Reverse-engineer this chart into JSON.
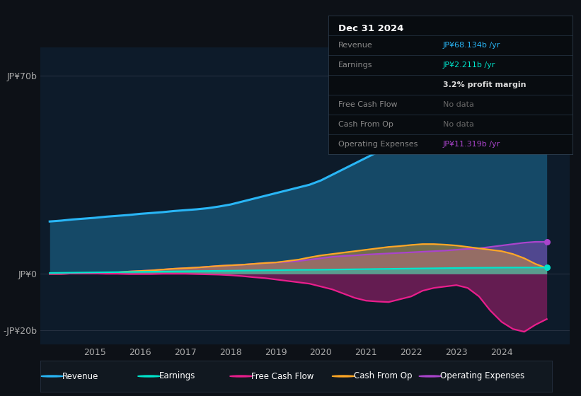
{
  "bg_color": "#0d1117",
  "chart_bg": "#0d1b2a",
  "ylim": [
    -25,
    80
  ],
  "ytick_positions": [
    -20,
    0,
    70
  ],
  "ytick_labels": [
    "-JP¥20b",
    "JP¥0",
    "JP¥70b"
  ],
  "xlim": [
    2013.8,
    2025.5
  ],
  "xtick_years": [
    2015,
    2016,
    2017,
    2018,
    2019,
    2020,
    2021,
    2022,
    2023,
    2024
  ],
  "years": [
    2014.0,
    2014.25,
    2014.5,
    2014.75,
    2015.0,
    2015.25,
    2015.5,
    2015.75,
    2016.0,
    2016.25,
    2016.5,
    2016.75,
    2017.0,
    2017.25,
    2017.5,
    2017.75,
    2018.0,
    2018.25,
    2018.5,
    2018.75,
    2019.0,
    2019.25,
    2019.5,
    2019.75,
    2020.0,
    2020.25,
    2020.5,
    2020.75,
    2021.0,
    2021.25,
    2021.5,
    2021.75,
    2022.0,
    2022.25,
    2022.5,
    2022.75,
    2023.0,
    2023.25,
    2023.5,
    2023.75,
    2024.0,
    2024.25,
    2024.5,
    2024.75,
    2025.0
  ],
  "revenue": [
    18.5,
    18.8,
    19.2,
    19.5,
    19.8,
    20.2,
    20.5,
    20.8,
    21.2,
    21.5,
    21.8,
    22.2,
    22.5,
    22.8,
    23.2,
    23.8,
    24.5,
    25.5,
    26.5,
    27.5,
    28.5,
    29.5,
    30.5,
    31.5,
    33.0,
    35.0,
    37.0,
    39.0,
    41.0,
    43.0,
    44.5,
    46.0,
    47.5,
    49.0,
    50.5,
    52.0,
    53.5,
    55.0,
    57.0,
    59.5,
    62.0,
    64.0,
    66.0,
    68.0,
    68.1
  ],
  "earnings": [
    0.3,
    0.35,
    0.4,
    0.45,
    0.5,
    0.55,
    0.6,
    0.65,
    0.7,
    0.75,
    0.8,
    0.85,
    0.9,
    0.95,
    1.0,
    1.05,
    1.1,
    1.15,
    1.2,
    1.25,
    1.3,
    1.35,
    1.4,
    1.42,
    1.45,
    1.5,
    1.55,
    1.6,
    1.65,
    1.7,
    1.75,
    1.8,
    1.85,
    1.9,
    1.95,
    2.0,
    2.05,
    2.1,
    2.12,
    2.15,
    2.18,
    2.2,
    2.21,
    2.21,
    2.21
  ],
  "free_cash_flow": [
    0.0,
    0.0,
    0.1,
    0.1,
    0.1,
    0.0,
    0.0,
    -0.1,
    -0.1,
    -0.1,
    0.0,
    0.0,
    0.0,
    -0.1,
    -0.2,
    -0.3,
    -0.5,
    -0.8,
    -1.2,
    -1.5,
    -2.0,
    -2.5,
    -3.0,
    -3.5,
    -4.5,
    -5.5,
    -7.0,
    -8.5,
    -9.5,
    -9.8,
    -10.0,
    -9.0,
    -8.0,
    -6.0,
    -5.0,
    -4.5,
    -4.0,
    -5.0,
    -8.0,
    -13.0,
    -17.0,
    -19.5,
    -20.5,
    -18.0,
    -16.0
  ],
  "cash_from_op": [
    0.0,
    0.0,
    0.1,
    0.1,
    0.2,
    0.3,
    0.5,
    0.8,
    1.0,
    1.2,
    1.5,
    1.8,
    2.0,
    2.2,
    2.5,
    2.8,
    3.0,
    3.2,
    3.5,
    3.8,
    4.0,
    4.5,
    5.0,
    5.8,
    6.5,
    7.0,
    7.5,
    8.0,
    8.5,
    9.0,
    9.5,
    9.8,
    10.2,
    10.5,
    10.5,
    10.3,
    10.0,
    9.5,
    9.0,
    8.5,
    8.0,
    7.0,
    5.5,
    3.5,
    2.0
  ],
  "op_expenses": [
    0.0,
    0.0,
    0.1,
    0.1,
    0.2,
    0.3,
    0.5,
    0.8,
    1.0,
    1.2,
    1.5,
    1.8,
    2.0,
    2.2,
    2.5,
    2.8,
    3.0,
    3.2,
    3.5,
    3.8,
    4.0,
    4.2,
    4.5,
    5.0,
    5.5,
    6.0,
    6.3,
    6.5,
    6.8,
    7.0,
    7.2,
    7.4,
    7.6,
    7.8,
    8.0,
    8.2,
    8.5,
    8.8,
    9.0,
    9.5,
    10.0,
    10.5,
    11.0,
    11.3,
    11.3
  ],
  "colors": {
    "revenue": "#29b6f6",
    "earnings": "#00e5cc",
    "free_cash_flow": "#e91e8c",
    "cash_from_op": "#ffa726",
    "op_expenses": "#aa44cc"
  },
  "legend_items": [
    {
      "label": "Revenue",
      "color": "#29b6f6"
    },
    {
      "label": "Earnings",
      "color": "#00e5cc"
    },
    {
      "label": "Free Cash Flow",
      "color": "#e91e8c"
    },
    {
      "label": "Cash From Op",
      "color": "#ffa726"
    },
    {
      "label": "Operating Expenses",
      "color": "#aa44cc"
    }
  ],
  "infobox_title": "Dec 31 2024",
  "infobox_rows": [
    {
      "label": "Revenue",
      "value": "JP¥68.134b /yr",
      "value_color": "#29b6f6"
    },
    {
      "label": "Earnings",
      "value": "JP¥2.211b /yr",
      "value_color": "#00e5cc"
    },
    {
      "label": "",
      "value": "3.2% profit margin",
      "value_color": "#dddddd"
    },
    {
      "label": "Free Cash Flow",
      "value": "No data",
      "value_color": "#666666"
    },
    {
      "label": "Cash From Op",
      "value": "No data",
      "value_color": "#666666"
    },
    {
      "label": "Operating Expenses",
      "value": "JP¥11.319b /yr",
      "value_color": "#aa44cc"
    }
  ]
}
